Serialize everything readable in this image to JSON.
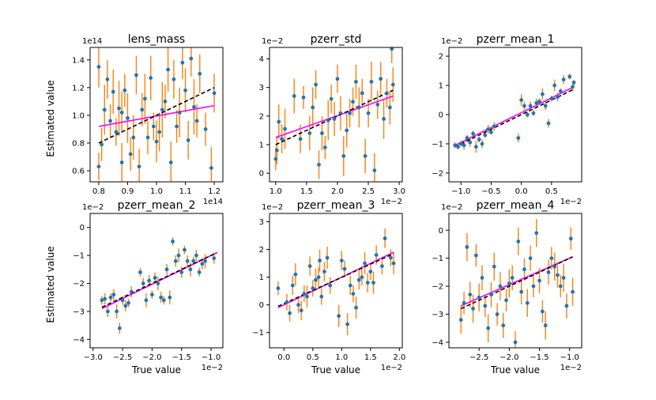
{
  "figure": {
    "ylabel": "Estimated value",
    "xlabel": "True value"
  },
  "colors": {
    "point": "#1f77b4",
    "error": "#ff7f0e",
    "fit": "#ff00ff",
    "truth": "#000000",
    "axes": "#000000"
  },
  "chart_data": [
    {
      "type": "scatter",
      "title": "lens_mass",
      "xlim": [
        0.77,
        1.23
      ],
      "ylim": [
        0.52,
        1.49
      ],
      "xticks": [
        0.8,
        0.9,
        1.0,
        1.1,
        1.2
      ],
      "yticks": [
        0.6,
        0.8,
        1.0,
        1.2,
        1.4
      ],
      "tick_decimals": 1,
      "x_multiplier": "1e14",
      "y_multiplier": "1e14",
      "fit_line": [
        [
          0.8,
          0.92
        ],
        [
          1.2,
          1.07
        ]
      ],
      "truth_line": [
        [
          0.8,
          0.8
        ],
        [
          1.2,
          1.2
        ]
      ],
      "points": [
        [
          0.8,
          1.35,
          0.15
        ],
        [
          0.8,
          0.63,
          0.1
        ],
        [
          0.81,
          0.79,
          0.12
        ],
        [
          0.82,
          1.04,
          0.18
        ],
        [
          0.83,
          1.26,
          0.14
        ],
        [
          0.84,
          0.96,
          0.12
        ],
        [
          0.85,
          1.17,
          0.16
        ],
        [
          0.86,
          0.88,
          0.1
        ],
        [
          0.87,
          1.05,
          0.2
        ],
        [
          0.88,
          0.66,
          0.14
        ],
        [
          0.88,
          1.02,
          0.15
        ],
        [
          0.89,
          1.18,
          0.12
        ],
        [
          0.9,
          0.98,
          0.18
        ],
        [
          0.91,
          0.72,
          0.12
        ],
        [
          0.92,
          0.84,
          0.16
        ],
        [
          0.93,
          1.29,
          0.14
        ],
        [
          0.94,
          0.63,
          0.13
        ],
        [
          0.95,
          1.04,
          0.12
        ],
        [
          0.96,
          1.12,
          0.18
        ],
        [
          0.97,
          0.84,
          0.12
        ],
        [
          0.98,
          1.27,
          0.16
        ],
        [
          0.99,
          0.92,
          0.1
        ],
        [
          1.0,
          0.81,
          0.15
        ],
        [
          1.01,
          0.88,
          0.14
        ],
        [
          1.02,
          1.04,
          0.2
        ],
        [
          1.03,
          1.1,
          0.12
        ],
        [
          1.04,
          1.33,
          0.16
        ],
        [
          1.05,
          0.66,
          0.15
        ],
        [
          1.06,
          1.26,
          0.14
        ],
        [
          1.07,
          0.92,
          0.12
        ],
        [
          1.08,
          1.02,
          0.18
        ],
        [
          1.09,
          1.38,
          0.12
        ],
        [
          1.1,
          1.18,
          0.16
        ],
        [
          1.11,
          0.82,
          0.14
        ],
        [
          1.12,
          1.41,
          0.13
        ],
        [
          1.13,
          1.06,
          0.2
        ],
        [
          1.14,
          0.96,
          0.12
        ],
        [
          1.15,
          1.3,
          0.14
        ],
        [
          1.17,
          0.9,
          0.12
        ],
        [
          1.19,
          0.62,
          0.15
        ],
        [
          1.2,
          1.16,
          0.14
        ]
      ]
    },
    {
      "type": "scatter",
      "title": "pzerr_std",
      "xlim": [
        0.9,
        3.05
      ],
      "ylim": [
        -0.3,
        4.4
      ],
      "xticks": [
        1.0,
        1.5,
        2.0,
        2.5,
        3.0
      ],
      "yticks": [
        0,
        1,
        2,
        3,
        4
      ],
      "tick_decimals": 1,
      "ytick_decimals": 0,
      "x_multiplier": "1e−2",
      "y_multiplier": "1e−2",
      "fit_line": [
        [
          1.0,
          1.25
        ],
        [
          2.9,
          2.7
        ]
      ],
      "truth_line": [
        [
          1.0,
          1.0
        ],
        [
          2.9,
          2.9
        ]
      ],
      "points": [
        [
          1.0,
          0.5,
          0.4
        ],
        [
          1.02,
          0.8,
          0.5
        ],
        [
          1.05,
          1.8,
          0.6
        ],
        [
          1.1,
          1.2,
          0.5
        ],
        [
          1.15,
          1.55,
          0.7
        ],
        [
          1.3,
          2.7,
          0.6
        ],
        [
          1.4,
          1.2,
          0.5
        ],
        [
          1.45,
          2.65,
          0.4
        ],
        [
          1.55,
          1.4,
          0.6
        ],
        [
          1.6,
          2.3,
          0.7
        ],
        [
          1.65,
          3.1,
          0.5
        ],
        [
          1.7,
          0.3,
          0.5
        ],
        [
          1.75,
          1.4,
          0.6
        ],
        [
          1.8,
          0.9,
          0.4
        ],
        [
          1.85,
          1.85,
          0.7
        ],
        [
          1.9,
          2.6,
          0.5
        ],
        [
          1.95,
          1.9,
          0.6
        ],
        [
          2.0,
          3.3,
          0.5
        ],
        [
          2.05,
          2.1,
          0.6
        ],
        [
          2.1,
          0.6,
          0.7
        ],
        [
          2.15,
          1.5,
          0.6
        ],
        [
          2.2,
          2.1,
          0.5
        ],
        [
          2.25,
          2.5,
          0.5
        ],
        [
          2.3,
          3.2,
          0.6
        ],
        [
          2.35,
          2.3,
          0.7
        ],
        [
          2.4,
          2.8,
          0.5
        ],
        [
          2.45,
          0.6,
          0.6
        ],
        [
          2.5,
          2.1,
          0.5
        ],
        [
          2.55,
          3.2,
          0.7
        ],
        [
          2.6,
          0.1,
          0.6
        ],
        [
          2.65,
          2.4,
          0.5
        ],
        [
          2.7,
          3.3,
          0.6
        ],
        [
          2.75,
          1.9,
          0.7
        ],
        [
          2.8,
          2.8,
          0.5
        ],
        [
          2.85,
          2.3,
          0.6
        ],
        [
          2.88,
          4.35,
          0.5
        ],
        [
          2.9,
          3.1,
          0.6
        ]
      ]
    },
    {
      "type": "scatter",
      "title": "pzerr_mean_1",
      "xlim": [
        -1.2,
        1.0
      ],
      "ylim": [
        -2.3,
        2.3
      ],
      "xticks": [
        -1.0,
        -0.5,
        0.0,
        0.5
      ],
      "yticks": [
        -2,
        -1,
        0,
        1,
        2
      ],
      "tick_decimals": 1,
      "ytick_decimals": 0,
      "x_multiplier": "1e−2",
      "y_multiplier": "1e−2",
      "fit_line": [
        [
          -1.1,
          -1.05
        ],
        [
          0.87,
          0.95
        ]
      ],
      "truth_line": [
        [
          -1.1,
          -1.1
        ],
        [
          0.87,
          0.87
        ]
      ],
      "points": [
        [
          -1.1,
          -1.05,
          0.1
        ],
        [
          -1.05,
          -1.1,
          0.1
        ],
        [
          -1.0,
          -1.0,
          0.1
        ],
        [
          -0.95,
          -1.05,
          0.15
        ],
        [
          -0.9,
          -0.8,
          0.1
        ],
        [
          -0.85,
          -0.95,
          0.15
        ],
        [
          -0.8,
          -0.65,
          0.1
        ],
        [
          -0.75,
          -1.1,
          0.2
        ],
        [
          -0.7,
          -0.85,
          0.1
        ],
        [
          -0.65,
          -1.0,
          0.15
        ],
        [
          -0.6,
          -0.7,
          0.1
        ],
        [
          -0.55,
          -0.5,
          0.15
        ],
        [
          -0.5,
          -0.6,
          0.1
        ],
        [
          -0.45,
          -0.4,
          0.15
        ],
        [
          -0.05,
          -0.8,
          0.15
        ],
        [
          0.0,
          0.5,
          0.2
        ],
        [
          0.05,
          0.3,
          0.15
        ],
        [
          0.1,
          0.0,
          0.1
        ],
        [
          0.15,
          0.3,
          0.15
        ],
        [
          0.2,
          0.05,
          0.1
        ],
        [
          0.25,
          0.4,
          0.15
        ],
        [
          0.3,
          0.45,
          0.1
        ],
        [
          0.35,
          0.7,
          0.2
        ],
        [
          0.4,
          0.3,
          0.15
        ],
        [
          0.45,
          -0.3,
          0.15
        ],
        [
          0.5,
          0.55,
          0.1
        ],
        [
          0.55,
          1.0,
          0.2
        ],
        [
          0.6,
          0.6,
          0.15
        ],
        [
          0.65,
          0.8,
          0.1
        ],
        [
          0.7,
          1.2,
          0.15
        ],
        [
          0.8,
          1.3,
          0.1
        ],
        [
          0.85,
          0.95,
          0.15
        ],
        [
          0.87,
          1.1,
          0.1
        ]
      ]
    },
    {
      "type": "scatter",
      "title": "pzerr_mean_2",
      "xlim": [
        -3.05,
        -0.8
      ],
      "ylim": [
        -4.3,
        0.5
      ],
      "xticks": [
        -3.0,
        -2.5,
        -2.0,
        -1.5,
        -1.0
      ],
      "yticks": [
        -4,
        -3,
        -2,
        -1,
        0
      ],
      "tick_decimals": 1,
      "ytick_decimals": 0,
      "x_multiplier": "1e−2",
      "y_multiplier": "1e−2",
      "fit_line": [
        [
          -2.85,
          -2.9
        ],
        [
          -0.9,
          -0.9
        ]
      ],
      "truth_line": [
        [
          -2.85,
          -2.85
        ],
        [
          -0.9,
          -0.9
        ]
      ],
      "points": [
        [
          -2.85,
          -2.6,
          0.15
        ],
        [
          -2.8,
          -2.55,
          0.2
        ],
        [
          -2.75,
          -3.0,
          0.2
        ],
        [
          -2.7,
          -2.5,
          0.15
        ],
        [
          -2.65,
          -2.4,
          0.2
        ],
        [
          -2.6,
          -3.0,
          0.25
        ],
        [
          -2.55,
          -3.6,
          0.2
        ],
        [
          -2.5,
          -2.6,
          0.15
        ],
        [
          -2.45,
          -2.8,
          0.2
        ],
        [
          -2.4,
          -2.7,
          0.15
        ],
        [
          -2.35,
          -2.3,
          0.2
        ],
        [
          -2.2,
          -1.6,
          0.15
        ],
        [
          -2.15,
          -2.0,
          0.2
        ],
        [
          -2.1,
          -2.6,
          0.25
        ],
        [
          -2.05,
          -1.9,
          0.2
        ],
        [
          -2.0,
          -2.4,
          0.15
        ],
        [
          -1.95,
          -1.8,
          0.2
        ],
        [
          -1.9,
          -2.0,
          0.25
        ],
        [
          -1.85,
          -2.5,
          0.2
        ],
        [
          -1.8,
          -2.6,
          0.15
        ],
        [
          -1.75,
          -1.5,
          0.2
        ],
        [
          -1.7,
          -2.5,
          0.25
        ],
        [
          -1.65,
          -0.5,
          0.15
        ],
        [
          -1.6,
          -1.2,
          0.2
        ],
        [
          -1.55,
          -1.0,
          0.25
        ],
        [
          -1.5,
          -1.6,
          0.2
        ],
        [
          -1.45,
          -0.8,
          0.15
        ],
        [
          -1.4,
          -1.2,
          0.2
        ],
        [
          -1.35,
          -1.5,
          0.25
        ],
        [
          -1.3,
          -1.2,
          0.15
        ],
        [
          -1.25,
          -1.0,
          0.2
        ],
        [
          -1.2,
          -1.6,
          0.15
        ],
        [
          -1.15,
          -1.3,
          0.2
        ],
        [
          -1.1,
          -1.2,
          0.25
        ],
        [
          -0.95,
          -1.1,
          0.2
        ]
      ]
    },
    {
      "type": "scatter",
      "title": "pzerr_mean_3",
      "xlim": [
        -0.25,
        2.05
      ],
      "ylim": [
        -1.55,
        3.3
      ],
      "xticks": [
        0.0,
        0.5,
        1.0,
        1.5,
        2.0
      ],
      "yticks": [
        -1,
        0,
        1,
        2,
        3
      ],
      "tick_decimals": 1,
      "ytick_decimals": 0,
      "x_multiplier": "1e−2",
      "y_multiplier": "1e−2",
      "fit_line": [
        [
          -0.1,
          -0.1
        ],
        [
          1.9,
          1.9
        ]
      ],
      "truth_line": [
        [
          -0.1,
          -0.05
        ],
        [
          1.9,
          1.85
        ]
      ],
      "points": [
        [
          -0.1,
          0.6,
          0.25
        ],
        [
          0.05,
          0.1,
          0.3
        ],
        [
          0.1,
          -0.3,
          0.3
        ],
        [
          0.15,
          0.7,
          0.35
        ],
        [
          0.2,
          1.1,
          0.4
        ],
        [
          0.25,
          0.0,
          0.3
        ],
        [
          0.3,
          -0.2,
          0.35
        ],
        [
          0.35,
          0.4,
          0.3
        ],
        [
          0.4,
          0.3,
          0.4
        ],
        [
          0.45,
          1.4,
          0.35
        ],
        [
          0.5,
          0.6,
          0.3
        ],
        [
          0.55,
          0.9,
          0.4
        ],
        [
          0.6,
          1.0,
          0.35
        ],
        [
          0.62,
          1.6,
          0.4
        ],
        [
          0.65,
          0.3,
          0.3
        ],
        [
          0.7,
          1.2,
          0.35
        ],
        [
          0.75,
          1.7,
          0.4
        ],
        [
          0.8,
          0.7,
          0.3
        ],
        [
          0.95,
          -0.4,
          0.4
        ],
        [
          1.0,
          1.6,
          0.35
        ],
        [
          1.05,
          1.3,
          0.3
        ],
        [
          1.1,
          -0.7,
          0.4
        ],
        [
          1.15,
          0.7,
          0.35
        ],
        [
          1.2,
          0.4,
          0.3
        ],
        [
          1.25,
          -0.1,
          0.4
        ],
        [
          1.3,
          0.9,
          0.35
        ],
        [
          1.35,
          1.0,
          0.3
        ],
        [
          1.4,
          1.5,
          0.4
        ],
        [
          1.45,
          0.8,
          0.35
        ],
        [
          1.5,
          1.2,
          0.3
        ],
        [
          1.55,
          0.8,
          0.4
        ],
        [
          1.6,
          1.8,
          0.35
        ],
        [
          1.7,
          1.4,
          0.3
        ],
        [
          1.75,
          2.4,
          0.35
        ],
        [
          1.85,
          1.7,
          0.3
        ],
        [
          1.9,
          1.5,
          0.4
        ]
      ]
    },
    {
      "type": "scatter",
      "title": "pzerr_mean_4",
      "xlim": [
        -3.0,
        -0.8
      ],
      "ylim": [
        -4.2,
        0.6
      ],
      "xticks": [
        -2.5,
        -2.0,
        -1.5,
        -1.0
      ],
      "yticks": [
        -4,
        -3,
        -2,
        -1,
        0
      ],
      "tick_decimals": 1,
      "ytick_decimals": 0,
      "x_multiplier": "1e−2",
      "y_multiplier": "1e−2",
      "fit_line": [
        [
          -2.8,
          -2.7
        ],
        [
          -0.95,
          -0.95
        ]
      ],
      "truth_line": [
        [
          -2.8,
          -2.8
        ],
        [
          -0.95,
          -0.95
        ]
      ],
      "points": [
        [
          -2.8,
          -3.2,
          0.5
        ],
        [
          -2.75,
          -2.6,
          0.4
        ],
        [
          -2.7,
          -0.6,
          0.5
        ],
        [
          -2.65,
          -2.3,
          0.45
        ],
        [
          -2.6,
          -2.8,
          0.5
        ],
        [
          -2.55,
          -0.9,
          0.4
        ],
        [
          -2.5,
          -2.4,
          0.5
        ],
        [
          -2.45,
          -1.7,
          0.45
        ],
        [
          -2.4,
          -2.7,
          0.4
        ],
        [
          -2.35,
          -3.5,
          0.5
        ],
        [
          -2.3,
          -2.3,
          0.45
        ],
        [
          -2.25,
          -1.3,
          0.5
        ],
        [
          -2.2,
          -3.0,
          0.4
        ],
        [
          -2.15,
          -2.0,
          0.5
        ],
        [
          -2.1,
          -3.4,
          0.45
        ],
        [
          -2.05,
          -2.5,
          0.4
        ],
        [
          -2.0,
          -1.9,
          0.5
        ],
        [
          -1.95,
          -1.7,
          0.45
        ],
        [
          -1.9,
          -4.0,
          0.4
        ],
        [
          -1.85,
          -0.4,
          0.5
        ],
        [
          -1.8,
          -2.2,
          0.45
        ],
        [
          -1.75,
          -1.4,
          0.4
        ],
        [
          -1.7,
          -2.6,
          0.5
        ],
        [
          -1.65,
          -1.0,
          0.45
        ],
        [
          -1.6,
          -2.0,
          0.4
        ],
        [
          -1.55,
          -0.1,
          0.5
        ],
        [
          -1.5,
          -1.8,
          0.45
        ],
        [
          -1.45,
          -2.9,
          0.4
        ],
        [
          -1.4,
          -3.4,
          0.5
        ],
        [
          -1.35,
          -1.5,
          0.45
        ],
        [
          -1.3,
          -1.0,
          0.4
        ],
        [
          -1.25,
          -1.3,
          0.5
        ],
        [
          -1.2,
          -1.6,
          0.45
        ],
        [
          -1.15,
          -2.0,
          0.4
        ],
        [
          -1.1,
          -1.7,
          0.5
        ],
        [
          -1.05,
          -2.7,
          0.45
        ],
        [
          -0.98,
          -0.3,
          0.4
        ],
        [
          -0.95,
          -2.2,
          0.5
        ]
      ]
    }
  ]
}
